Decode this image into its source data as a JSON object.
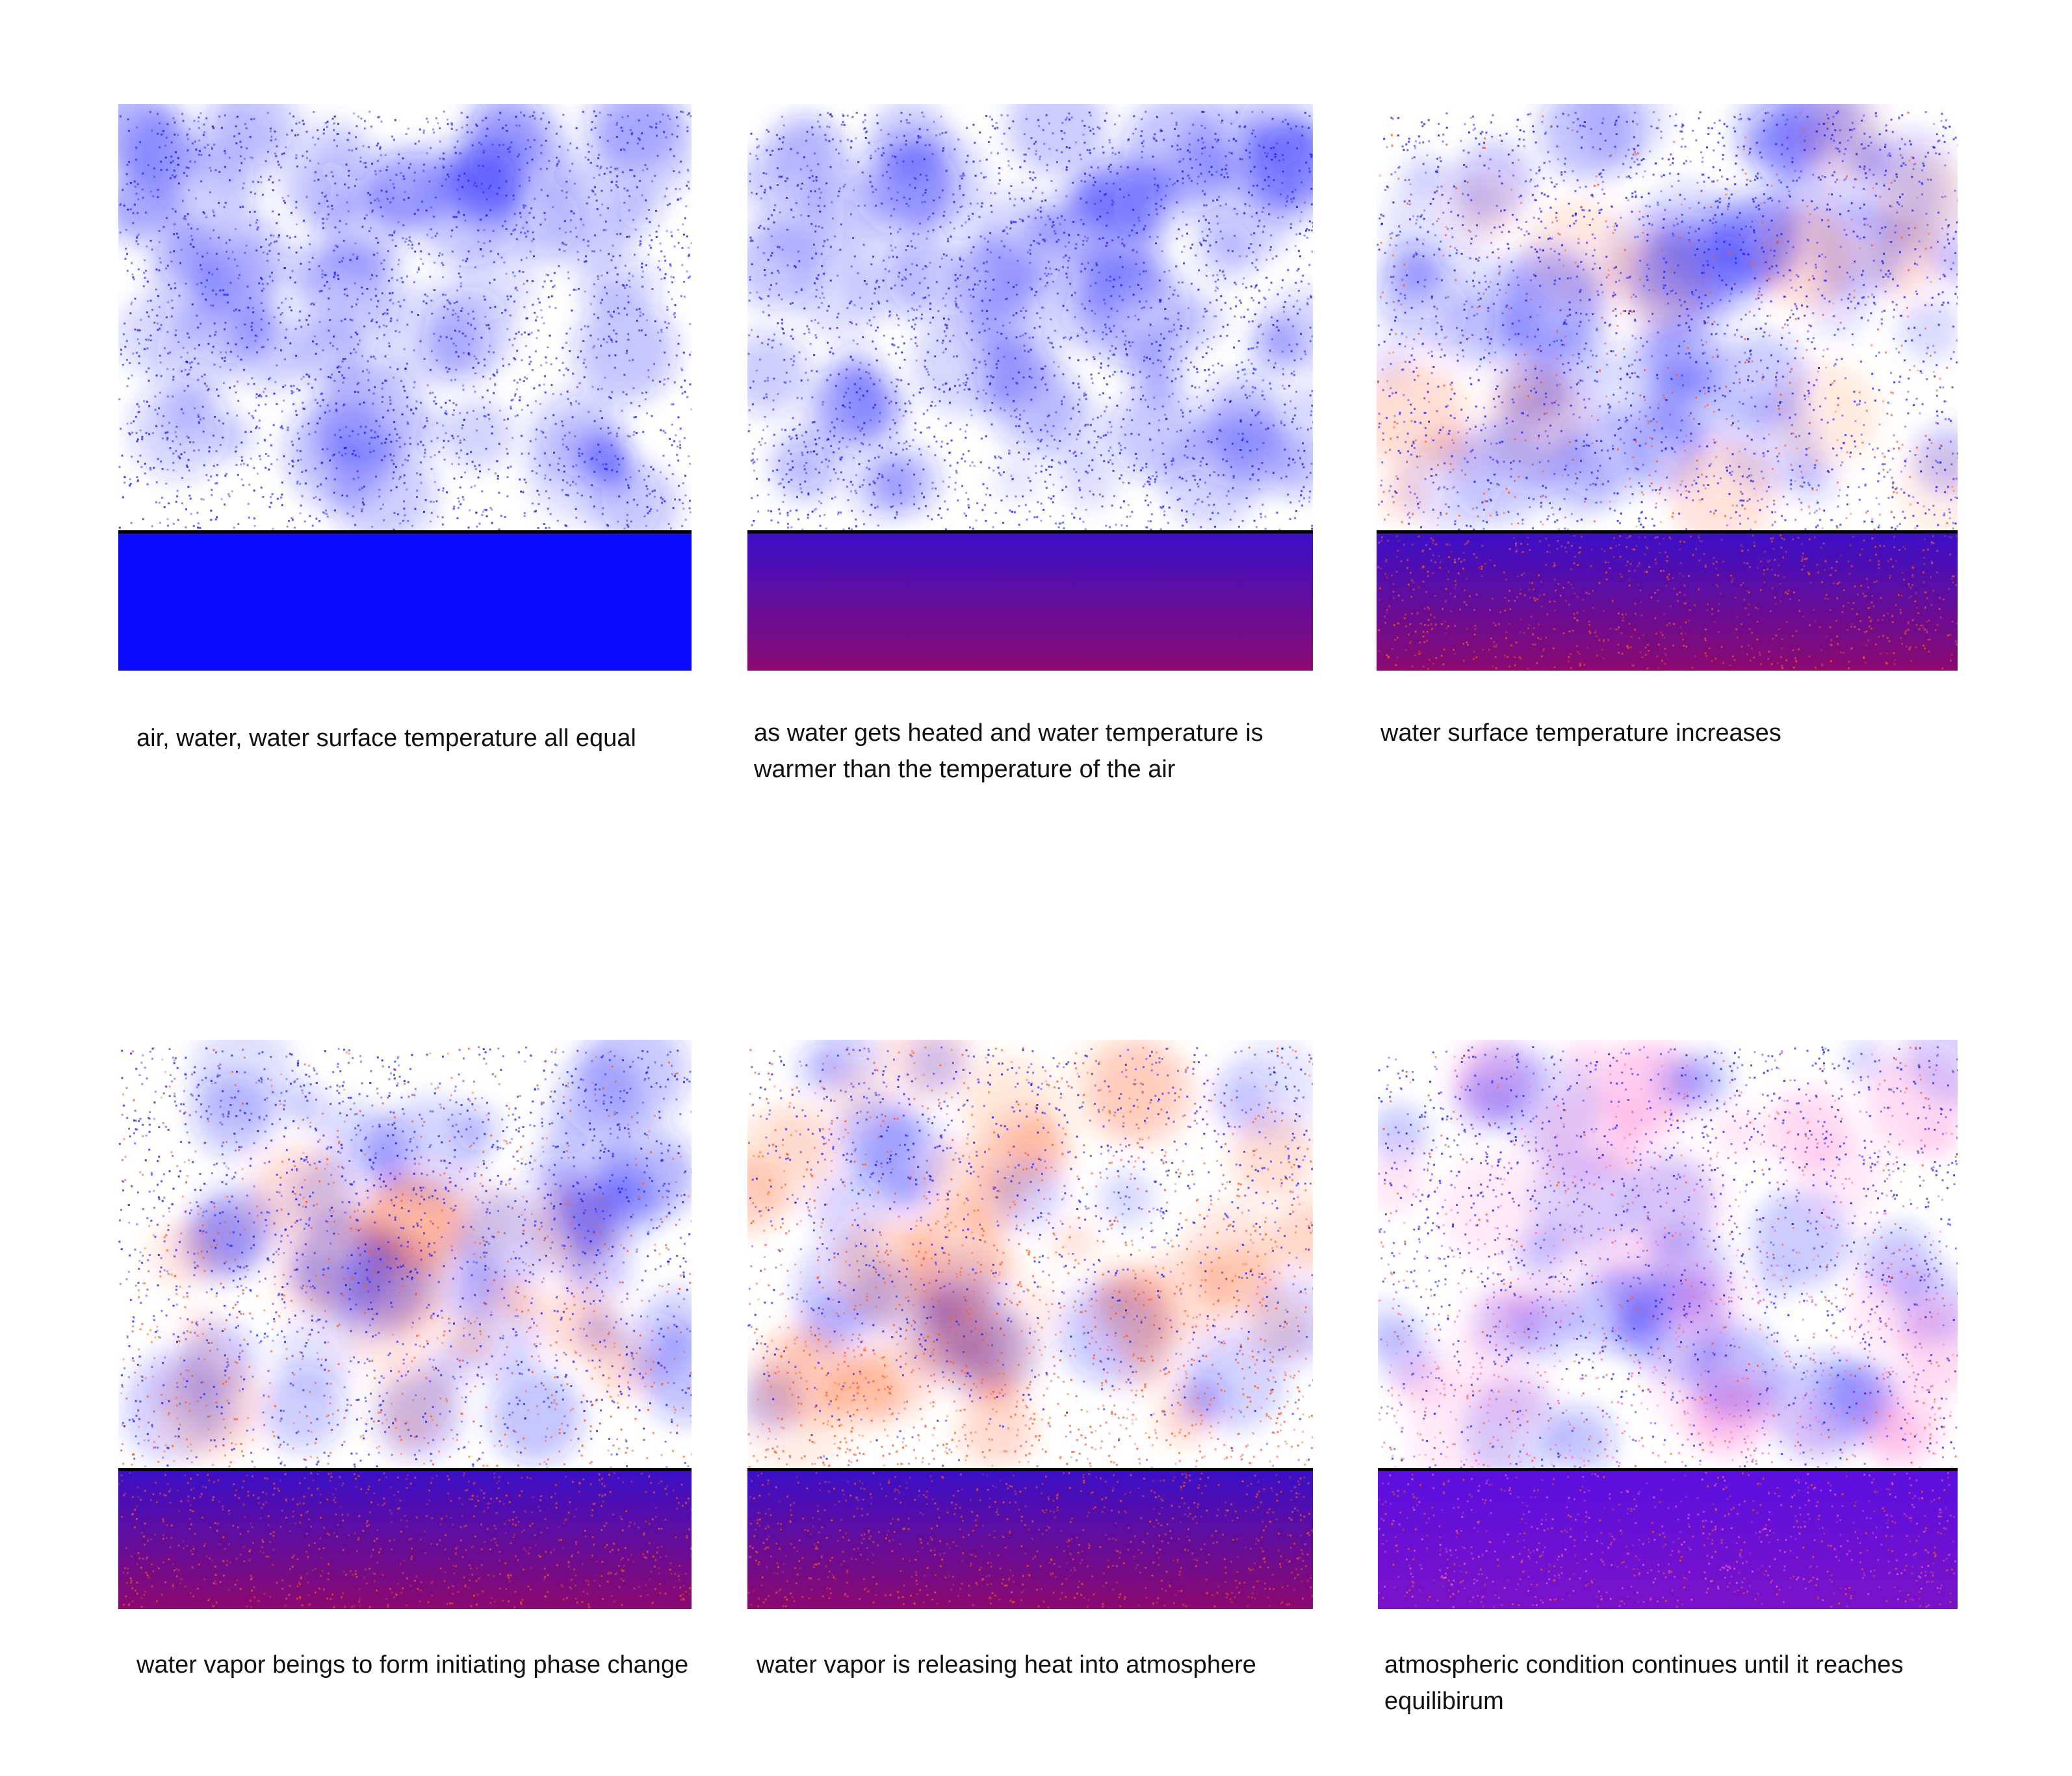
{
  "colors": {
    "cool_particles": "#1a1aff",
    "warm_particles": "#ff5a1f",
    "warm_pink_particles": "#ff66cc",
    "water_cold": "#0a0aff",
    "water_warm_top": "#3a10c8",
    "water_warm_bottom": "#8a0a70",
    "surface_line": "#000000"
  },
  "panels": [
    {
      "caption": "air, water, water surface temperature all equal",
      "warm_level": 0,
      "water_style": "cold"
    },
    {
      "caption": "as water gets heated and water temperature is warmer than the temperature of the air",
      "warm_level": 0,
      "water_style": "gradient"
    },
    {
      "caption": "water surface temperature increases",
      "warm_level": 0.25,
      "water_style": "speckled"
    },
    {
      "caption": "water vapor beings to form initiating phase change",
      "warm_level": 0.45,
      "water_style": "speckled"
    },
    {
      "caption": "water vapor is releasing heat into atmosphere",
      "warm_level": 0.8,
      "water_style": "speckled"
    },
    {
      "caption": "atmospheric condition continues until it reaches equilibirum",
      "warm_level": 0.6,
      "water_style": "equilibrium"
    }
  ]
}
